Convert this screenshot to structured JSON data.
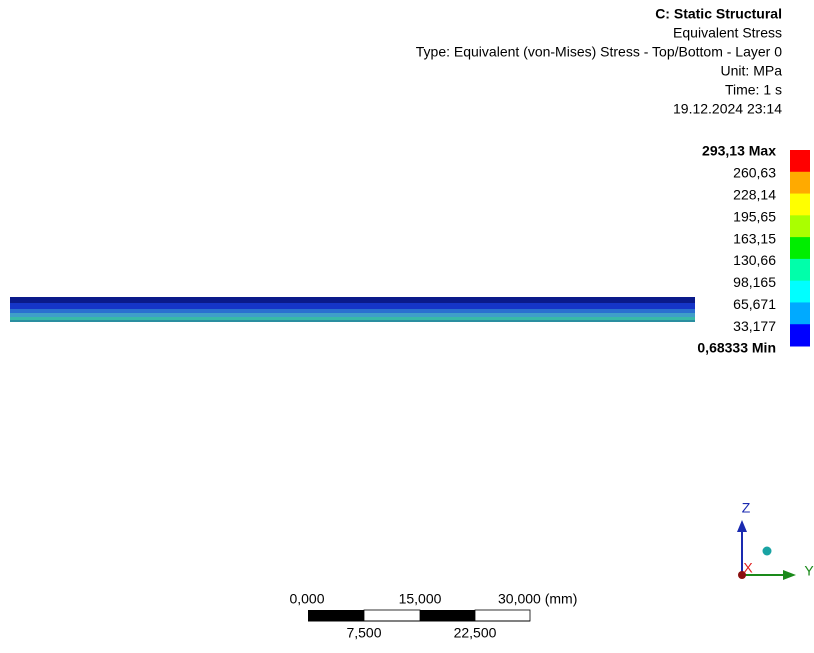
{
  "header": {
    "title": "C: Static Structural",
    "lines": [
      "Equivalent Stress",
      "Type: Equivalent (von-Mises) Stress - Top/Bottom - Layer 0",
      "Unit: MPa",
      "Time: 1 s",
      "19.12.2024 23:14"
    ]
  },
  "legend": {
    "max_label": "293,13 Max",
    "labels": [
      "260,63",
      "228,14",
      "195,65",
      "163,15",
      "130,66",
      "98,165",
      "65,671",
      "33,177"
    ],
    "min_label": "0,68333 Min",
    "colors": [
      "#ff0000",
      "#ffaa00",
      "#ffff00",
      "#aaff00",
      "#00ee00",
      "#00ffaa",
      "#00ffff",
      "#00aaff",
      "#0000ff"
    ]
  },
  "scale_bar": {
    "top_labels": [
      "0,000",
      "15,000",
      "30,000 (mm)"
    ],
    "bottom_labels": [
      "7,500",
      "22,500"
    ]
  },
  "triad": {
    "z": "Z",
    "y": "Y",
    "x": "X"
  }
}
